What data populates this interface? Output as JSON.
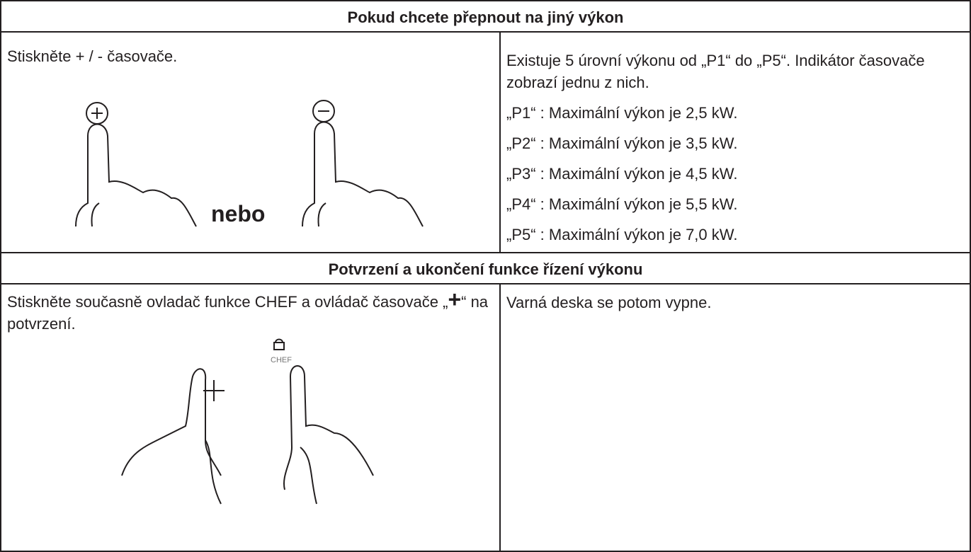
{
  "sections": [
    {
      "heading": "Pokud chcete přepnout na jiný výkon",
      "left": {
        "text": "Stiskněte + / - časovače.",
        "or_label": "nebo"
      },
      "right": {
        "paragraphs": [
          "Existuje 5 úrovní výkonu od „P1“ do „P5“. Indikátor časovače zobrazí jednu z nich.",
          "„P1“ : Maximální výkon je 2,5 kW.",
          "„P2“ : Maximální výkon je 3,5 kW.",
          "„P3“ : Maximální výkon je 4,5 kW.",
          "„P4“ : Maximální výkon je 5,5 kW.",
          "„P5“ : Maximální výkon je 7,0 kW."
        ]
      }
    },
    {
      "heading": "Potvrzení a ukončení funkce řízení výkonu",
      "left": {
        "text_parts": [
          "Stiskněte současně ovladač funkce CHEF a ovládač časovače „",
          "+",
          "“ na potvrzení."
        ],
        "chef_label": "CHEF"
      },
      "right": {
        "paragraphs": [
          "Varná deska se potom vypne."
        ]
      }
    }
  ]
}
